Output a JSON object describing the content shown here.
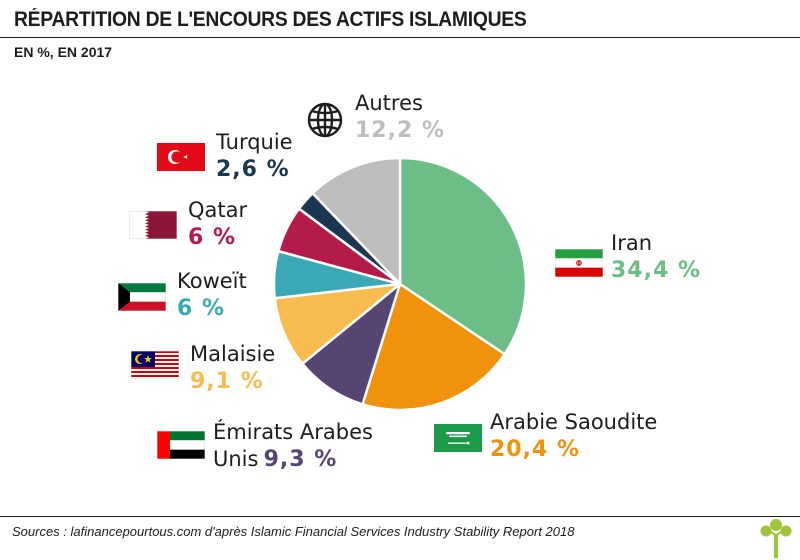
{
  "header": {
    "title": "RÉPARTITION DE L'ENCOURS DES ACTIFS ISLAMIQUES",
    "subtitle": "EN %, EN 2017"
  },
  "footer": {
    "source": "Sources : lafinancepourtous.com d'après Islamic Financial Services Industry Stability Report 2018"
  },
  "icons": {
    "autres": "globe-icon",
    "logo": "tree-logo-icon"
  },
  "chart_data": {
    "type": "pie",
    "title": "RÉPARTITION DE L'ENCOURS DES ACTIFS ISLAMIQUES",
    "subtitle": "EN %, EN 2017",
    "unit": "%",
    "slices": [
      {
        "name": "Iran",
        "value": 34.4,
        "label": "34,4 %",
        "color": "#6cbe86"
      },
      {
        "name": "Arabie Saoudite",
        "value": 20.4,
        "label": "20,4 %",
        "color": "#f0920b"
      },
      {
        "name": "Émirats Arabes Unis",
        "name_line1": "Émirats Arabes",
        "name_line2": "Unis",
        "value": 9.3,
        "label": "9,3 %",
        "color": "#564573"
      },
      {
        "name": "Malaisie",
        "value": 9.1,
        "label": "9,1 %",
        "color": "#f8bb4f"
      },
      {
        "name": "Koweït",
        "value": 6,
        "label": "6 %",
        "color": "#3ba9b5"
      },
      {
        "name": "Qatar",
        "value": 6,
        "label": "6 %",
        "color": "#b31b48"
      },
      {
        "name": "Turquie",
        "value": 2.6,
        "label": "2,6 %",
        "color": "#1b3650"
      },
      {
        "name": "Autres",
        "value": 12.2,
        "label": "12,2 %",
        "color": "#bdbdbd"
      }
    ]
  }
}
